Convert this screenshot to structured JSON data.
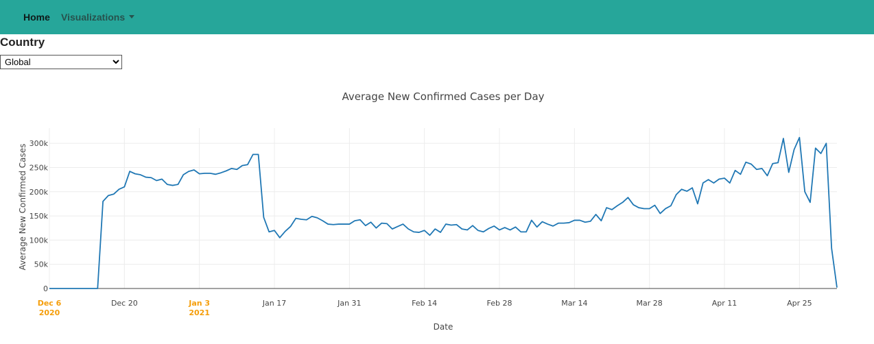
{
  "navbar": {
    "home_label": "Home",
    "visualizations_label": "Visualizations",
    "background_color": "#26a69a"
  },
  "filter": {
    "label": "Country",
    "selected": "Global"
  },
  "chart_data": {
    "type": "line",
    "title": "Average New Confirmed Cases per Day",
    "xlabel": "Date",
    "ylabel": "Average New Confirmed Cases",
    "x_start": "2020-12-06",
    "ylim": [
      0,
      320000
    ],
    "grid": true,
    "line_color": "#1f77b4",
    "highlight_color": "#f59e0b",
    "x_ticks": [
      {
        "date": "2020-12-06",
        "label": "Dec 6",
        "sub": "2020",
        "highlight": true
      },
      {
        "date": "2020-12-20",
        "label": "Dec 20"
      },
      {
        "date": "2021-01-03",
        "label": "Jan 3",
        "sub": "2021",
        "highlight": true
      },
      {
        "date": "2021-01-17",
        "label": "Jan 17"
      },
      {
        "date": "2021-01-31",
        "label": "Jan 31"
      },
      {
        "date": "2021-02-14",
        "label": "Feb 14"
      },
      {
        "date": "2021-02-28",
        "label": "Feb 28"
      },
      {
        "date": "2021-03-14",
        "label": "Mar 14"
      },
      {
        "date": "2021-03-28",
        "label": "Mar 28"
      },
      {
        "date": "2021-04-11",
        "label": "Apr 11"
      },
      {
        "date": "2021-04-25",
        "label": "Apr 25"
      }
    ],
    "y_ticks": [
      {
        "value": 0,
        "label": "0"
      },
      {
        "value": 50000,
        "label": "50k"
      },
      {
        "value": 100000,
        "label": "100k"
      },
      {
        "value": 150000,
        "label": "150k"
      },
      {
        "value": 200000,
        "label": "200k"
      },
      {
        "value": 250000,
        "label": "250k"
      },
      {
        "value": 300000,
        "label": "300k"
      }
    ],
    "series": [
      {
        "values": [
          0,
          0,
          0,
          0,
          0,
          0,
          0,
          0,
          0,
          0,
          180000,
          192000,
          195000,
          205000,
          210000,
          242000,
          237000,
          235000,
          230000,
          229000,
          223000,
          226000,
          215000,
          213000,
          215000,
          235000,
          242000,
          245000,
          237000,
          238000,
          238000,
          236000,
          239000,
          243000,
          248000,
          246000,
          254000,
          256000,
          277000,
          277000,
          147000,
          117000,
          120000,
          105000,
          118000,
          128000,
          145000,
          143000,
          142000,
          149000,
          146000,
          140000,
          133000,
          132000,
          133000,
          133000,
          133000,
          140000,
          142000,
          130000,
          137000,
          125000,
          135000,
          134000,
          123000,
          128000,
          133000,
          123000,
          117000,
          116000,
          120000,
          110000,
          123000,
          116000,
          133000,
          131000,
          132000,
          123000,
          121000,
          130000,
          120000,
          117000,
          124000,
          129000,
          121000,
          126000,
          121000,
          127000,
          117000,
          117000,
          141000,
          127000,
          138000,
          133000,
          129000,
          135000,
          135000,
          136000,
          141000,
          141000,
          137000,
          139000,
          153000,
          140000,
          167000,
          163000,
          171000,
          178000,
          188000,
          173000,
          167000,
          165000,
          165000,
          172000,
          155000,
          165000,
          171000,
          194000,
          205000,
          201000,
          208000,
          175000,
          218000,
          225000,
          218000,
          226000,
          228000,
          218000,
          244000,
          236000,
          261000,
          257000,
          246000,
          248000,
          233000,
          258000,
          260000,
          310000,
          240000,
          287000,
          312000,
          200000,
          178000,
          290000,
          279000,
          300000,
          83000,
          2000
        ]
      }
    ]
  }
}
